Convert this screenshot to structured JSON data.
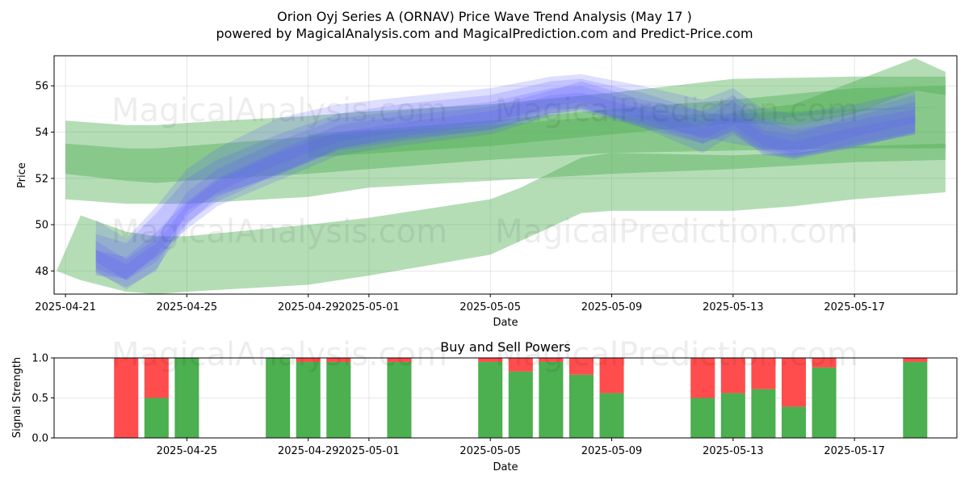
{
  "title": "Orion Oyj Series A (ORNAV) Price Wave Trend Analysis (May 17 )",
  "subtitle": "powered by MagicalAnalysis.com and MagicalPrediction.com and Predict-Price.com",
  "watermarks": [
    "MagicalAnalysis.com",
    "MagicalPrediction.com"
  ],
  "colors": {
    "green": "#4caf50",
    "blue": "#5a5aff",
    "red": "#ff4d4d",
    "bar_green": "#4caf50"
  },
  "chart_data": [
    {
      "type": "area",
      "title": "",
      "xlabel": "Date",
      "ylabel": "Price",
      "x_range": [
        "2025-04-20T15:00",
        "2025-05-20T09:00"
      ],
      "ylim": [
        47.0,
        57.3
      ],
      "y_ticks": [
        48,
        50,
        52,
        54,
        56
      ],
      "x_ticks": [
        "2025-04-21",
        "2025-04-25",
        "2025-04-29",
        "2025-05-01",
        "2025-05-05",
        "2025-05-09",
        "2025-05-13",
        "2025-05-17"
      ],
      "grid": true,
      "green_bands": [
        {
          "x": [
            "2025-04-21",
            "2025-04-23",
            "2025-04-24",
            "2025-04-25",
            "2025-04-29",
            "2025-05-01",
            "2025-05-05",
            "2025-05-09",
            "2025-05-13",
            "2025-05-17",
            "2025-05-20"
          ],
          "upper": [
            54.5,
            54.3,
            54.3,
            54.4,
            54.7,
            54.9,
            55.2,
            55.7,
            56.3,
            56.4,
            56.4
          ],
          "lower": [
            51.1,
            50.9,
            50.9,
            50.9,
            51.2,
            51.6,
            51.9,
            52.2,
            52.4,
            52.7,
            52.8
          ]
        },
        {
          "x": [
            "2025-04-21",
            "2025-04-23",
            "2025-04-24",
            "2025-04-25",
            "2025-04-29",
            "2025-05-01",
            "2025-05-05",
            "2025-05-09",
            "2025-05-13",
            "2025-05-17",
            "2025-05-20"
          ],
          "upper": [
            53.5,
            53.3,
            53.3,
            53.4,
            53.8,
            54.0,
            54.3,
            54.7,
            54.8,
            55.0,
            55.1
          ],
          "lower": [
            52.2,
            51.9,
            51.8,
            51.9,
            52.2,
            52.4,
            52.8,
            53.1,
            53.2,
            53.3,
            53.3
          ]
        },
        {
          "x": [
            "2025-04-20T17:00",
            "2025-04-21T12:00",
            "2025-04-23",
            "2025-04-24",
            "2025-04-25",
            "2025-04-29",
            "2025-05-01",
            "2025-05-05",
            "2025-05-06",
            "2025-05-08",
            "2025-05-09",
            "2025-05-13",
            "2025-05-15",
            "2025-05-17",
            "2025-05-20"
          ],
          "upper": [
            48.0,
            50.4,
            49.7,
            49.5,
            49.5,
            50.0,
            50.3,
            51.1,
            51.6,
            52.9,
            53.1,
            53.0,
            53.1,
            53.4,
            53.5
          ],
          "lower": [
            48.0,
            47.6,
            47.1,
            47.0,
            47.1,
            47.4,
            47.8,
            48.7,
            49.3,
            50.5,
            50.6,
            50.6,
            50.8,
            51.1,
            51.4
          ]
        },
        {
          "x": [
            "2025-04-29",
            "2025-05-05",
            "2025-05-09",
            "2025-05-13",
            "2025-05-17",
            "2025-05-20"
          ],
          "upper": [
            53.9,
            54.5,
            55.0,
            55.4,
            55.9,
            56.0
          ],
          "lower": [
            52.9,
            53.4,
            53.9,
            54.4,
            54.9,
            55.1
          ]
        },
        {
          "x": [
            "2025-05-13",
            "2025-05-15",
            "2025-05-17",
            "2025-05-19",
            "2025-05-20"
          ],
          "upper": [
            54.9,
            55.2,
            56.2,
            57.2,
            56.6
          ],
          "lower": [
            54.4,
            54.3,
            54.8,
            55.8,
            55.6
          ]
        }
      ],
      "blue_band_x": [
        "2025-04-22",
        "2025-04-23",
        "2025-04-24",
        "2025-04-25",
        "2025-04-26",
        "2025-04-28",
        "2025-04-30",
        "2025-05-02",
        "2025-05-05",
        "2025-05-07",
        "2025-05-08",
        "2025-05-10",
        "2025-05-12",
        "2025-05-13",
        "2025-05-14",
        "2025-05-15",
        "2025-05-17",
        "2025-05-19"
      ],
      "blue_bands": [
        {
          "upper": [
            49.3,
            48.5,
            49.4,
            51.4,
            52.4,
            53.6,
            54.6,
            54.9,
            55.3,
            55.9,
            56.0,
            55.2,
            54.5,
            55.4,
            54.1,
            53.9,
            54.7,
            55.3
          ],
          "lower": [
            48.0,
            47.2,
            48.1,
            50.0,
            51.2,
            52.2,
            53.3,
            53.7,
            54.1,
            54.8,
            55.1,
            54.2,
            53.1,
            53.9,
            53.1,
            52.8,
            53.4,
            53.9
          ]
        },
        {
          "upper": [
            48.9,
            48.6,
            49.7,
            51.0,
            52.0,
            53.2,
            54.3,
            54.7,
            55.1,
            55.8,
            56.2,
            55.4,
            54.9,
            54.6,
            54.5,
            54.1,
            54.5,
            55.0
          ],
          "lower": [
            47.8,
            47.7,
            48.6,
            49.8,
            50.8,
            51.9,
            53.0,
            53.4,
            53.9,
            54.7,
            55.0,
            54.3,
            53.8,
            53.5,
            53.3,
            53.0,
            53.4,
            53.9
          ]
        },
        {
          "upper": [
            49.6,
            49.2,
            50.5,
            52.0,
            52.8,
            53.9,
            54.8,
            55.2,
            55.6,
            56.2,
            56.3,
            55.7,
            54.9,
            55.6,
            54.6,
            54.3,
            54.9,
            55.6
          ],
          "lower": [
            48.4,
            47.6,
            48.7,
            50.4,
            51.4,
            52.6,
            53.6,
            54.0,
            54.4,
            55.1,
            55.3,
            54.6,
            53.7,
            54.3,
            53.4,
            53.1,
            53.8,
            54.4
          ]
        },
        {
          "upper": [
            50.2,
            49.4,
            50.8,
            52.4,
            53.3,
            54.6,
            55.2,
            55.5,
            55.9,
            56.4,
            56.5,
            56.0,
            55.4,
            55.9,
            55.0,
            54.8,
            55.2,
            55.8
          ],
          "lower": [
            47.9,
            47.3,
            48.0,
            50.6,
            51.3,
            52.1,
            53.3,
            53.8,
            54.3,
            55.0,
            55.0,
            54.4,
            53.5,
            54.0,
            53.0,
            52.9,
            53.3,
            54.0
          ]
        },
        {
          "upper": [
            48.9,
            48.3,
            49.2,
            50.9,
            51.9,
            53.1,
            54.0,
            54.4,
            54.9,
            55.6,
            55.7,
            55.0,
            54.2,
            54.9,
            53.9,
            53.6,
            54.2,
            54.7
          ],
          "lower": [
            48.1,
            47.6,
            48.4,
            50.1,
            51.0,
            52.2,
            53.2,
            53.6,
            54.1,
            54.8,
            54.9,
            54.2,
            53.5,
            54.1,
            53.2,
            52.9,
            53.5,
            54.0
          ]
        }
      ]
    },
    {
      "type": "bar",
      "title": "Buy and Sell Powers",
      "xlabel": "Date",
      "ylabel": "Signal Strength",
      "ylim": [
        0,
        1
      ],
      "y_ticks": [
        "0.0",
        "0.5",
        "1.0"
      ],
      "x_ticks": [
        "2025-04-25",
        "2025-04-29",
        "2025-05-01",
        "2025-05-05",
        "2025-05-09",
        "2025-05-13",
        "2025-05-17"
      ],
      "grid": true,
      "dates": [
        "2025-04-23",
        "2025-04-24",
        "2025-04-25",
        "2025-04-28",
        "2025-04-29",
        "2025-04-30",
        "2025-05-02",
        "2025-05-05",
        "2025-05-06",
        "2025-05-07",
        "2025-05-08",
        "2025-05-09",
        "2025-05-12",
        "2025-05-13",
        "2025-05-14",
        "2025-05-15",
        "2025-05-16",
        "2025-05-19"
      ],
      "buy": [
        0.0,
        0.5,
        1.0,
        1.0,
        0.95,
        0.95,
        0.95,
        0.95,
        0.83,
        0.95,
        0.79,
        0.56,
        0.5,
        0.56,
        0.61,
        0.39,
        0.88,
        0.95
      ]
    }
  ]
}
